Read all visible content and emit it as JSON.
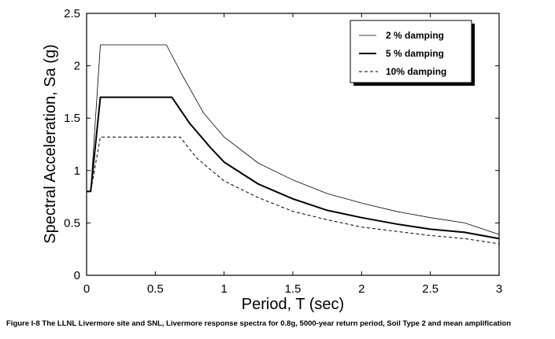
{
  "caption": "Figure I-8  The LLNL Livermore site and SNL, Livermore response spectra for 0.8g, 5000-year return period, Soil Type 2 and mean amplification",
  "chart_data": {
    "type": "line",
    "title": "",
    "xlabel": "Period, T (sec)",
    "ylabel": "Spectral Acceleration, Sa (g)",
    "xlim": [
      0,
      3
    ],
    "ylim": [
      0,
      2.5
    ],
    "xticks": [
      0,
      0.5,
      1,
      1.5,
      2,
      2.5,
      3
    ],
    "xtick_labels": [
      "0",
      "0.5",
      "1",
      "1.5",
      "2",
      "2.5",
      "3"
    ],
    "yticks": [
      0,
      0.5,
      1,
      1.5,
      2,
      2.5
    ],
    "ytick_labels": [
      "0",
      "0.5",
      "1",
      "1.5",
      "2",
      "2.5"
    ],
    "grid": false,
    "legend_position": "top-right",
    "series": [
      {
        "name": "2 % damping",
        "style": "thin-solid",
        "points": [
          [
            0,
            0.8
          ],
          [
            0.03,
            0.8
          ],
          [
            0.1,
            2.2
          ],
          [
            0.58,
            2.2
          ],
          [
            0.7,
            1.9
          ],
          [
            0.85,
            1.55
          ],
          [
            1.0,
            1.32
          ],
          [
            1.25,
            1.07
          ],
          [
            1.5,
            0.91
          ],
          [
            1.75,
            0.78
          ],
          [
            2.0,
            0.69
          ],
          [
            2.25,
            0.61
          ],
          [
            2.5,
            0.55
          ],
          [
            2.75,
            0.5
          ],
          [
            3.0,
            0.39
          ]
        ]
      },
      {
        "name": "5 % damping",
        "style": "thick-solid",
        "points": [
          [
            0,
            0.8
          ],
          [
            0.03,
            0.8
          ],
          [
            0.1,
            1.7
          ],
          [
            0.62,
            1.7
          ],
          [
            0.75,
            1.45
          ],
          [
            0.9,
            1.22
          ],
          [
            1.0,
            1.08
          ],
          [
            1.25,
            0.87
          ],
          [
            1.5,
            0.73
          ],
          [
            1.75,
            0.62
          ],
          [
            2.0,
            0.55
          ],
          [
            2.25,
            0.49
          ],
          [
            2.5,
            0.44
          ],
          [
            2.75,
            0.41
          ],
          [
            3.0,
            0.35
          ]
        ]
      },
      {
        "name": "10% damping",
        "style": "dashed",
        "points": [
          [
            0,
            0.8
          ],
          [
            0.03,
            0.8
          ],
          [
            0.1,
            1.32
          ],
          [
            0.68,
            1.32
          ],
          [
            0.8,
            1.12
          ],
          [
            1.0,
            0.9
          ],
          [
            1.25,
            0.74
          ],
          [
            1.5,
            0.61
          ],
          [
            1.75,
            0.53
          ],
          [
            2.0,
            0.46
          ],
          [
            2.25,
            0.42
          ],
          [
            2.5,
            0.38
          ],
          [
            2.75,
            0.35
          ],
          [
            3.0,
            0.3
          ]
        ]
      }
    ]
  }
}
